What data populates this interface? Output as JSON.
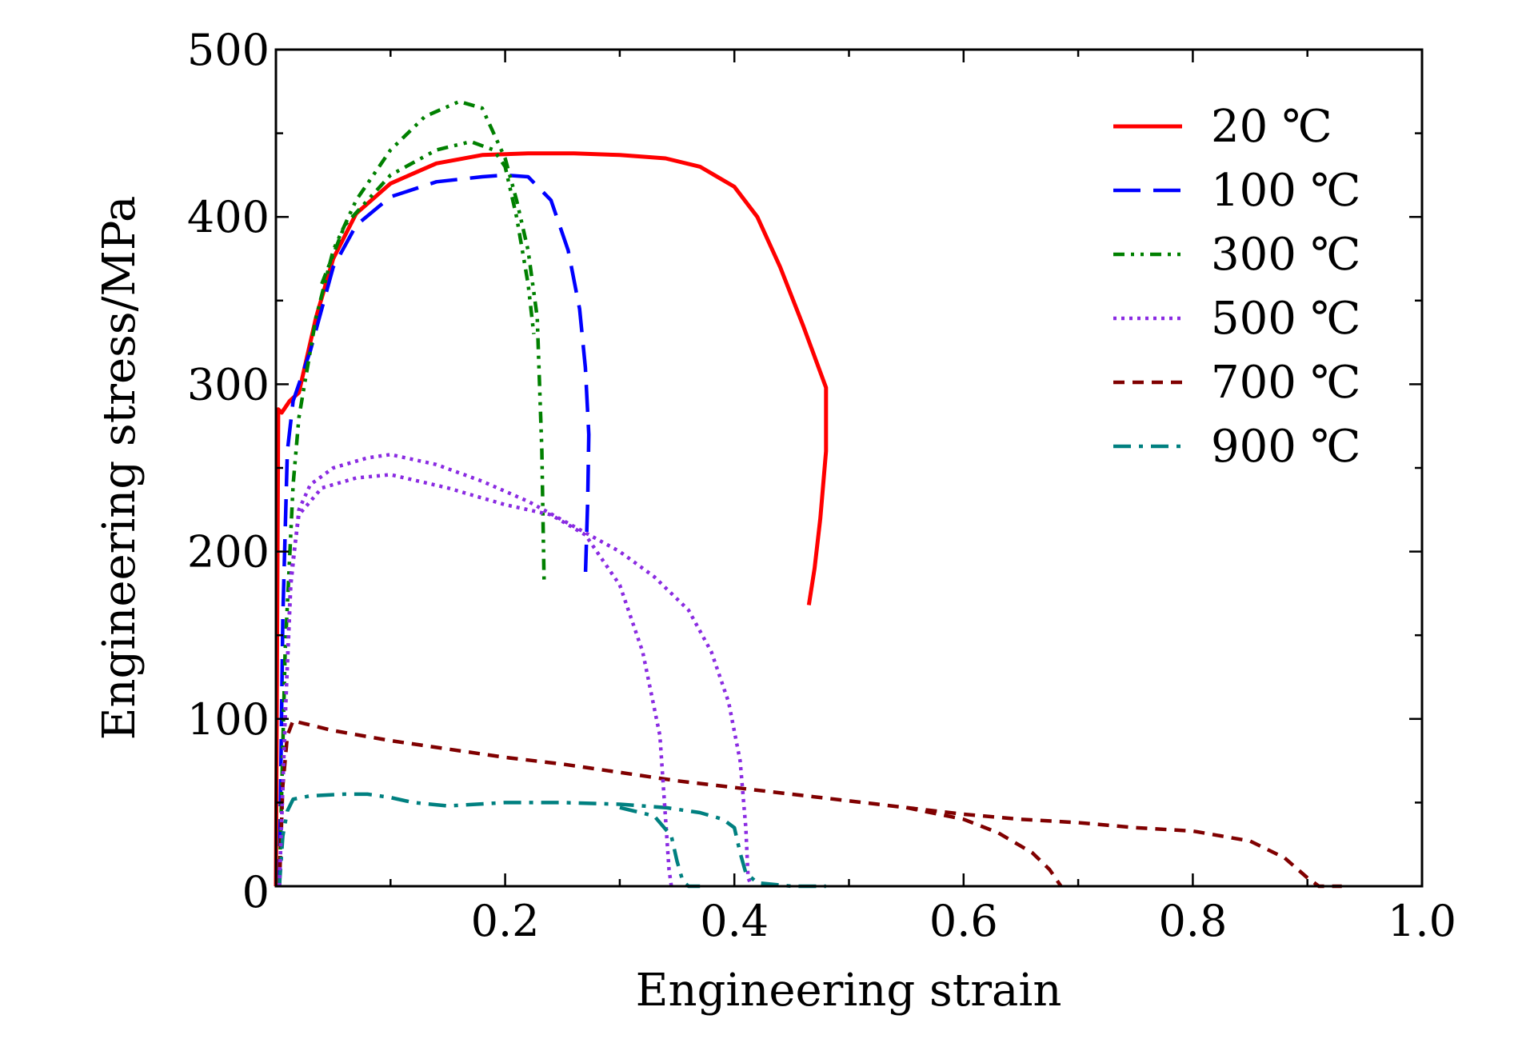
{
  "chart_data": {
    "type": "line",
    "title": "",
    "xlabel": "Engineering strain",
    "ylabel": "Engineering stress/MPa",
    "xlim": [
      0,
      1.0
    ],
    "ylim": [
      0,
      500
    ],
    "xticks": [
      0.2,
      0.4,
      0.6,
      0.8,
      1.0
    ],
    "xtick_labels": [
      "0.2",
      "0.4",
      "0.6",
      "0.8",
      "1.0"
    ],
    "yticks": [
      0,
      100,
      200,
      300,
      400,
      500
    ],
    "ytick_labels": [
      "0",
      "100",
      "200",
      "300",
      "400",
      "500"
    ],
    "grid": false,
    "legend_position": "top-right",
    "series": [
      {
        "name": "20 ℃",
        "color": "#ff0000",
        "dash": "solid",
        "points": [
          [
            0.0,
            0
          ],
          [
            0.002,
            285
          ],
          [
            0.005,
            283
          ],
          [
            0.012,
            290
          ],
          [
            0.02,
            295
          ],
          [
            0.035,
            340
          ],
          [
            0.05,
            375
          ],
          [
            0.07,
            402
          ],
          [
            0.1,
            420
          ],
          [
            0.14,
            432
          ],
          [
            0.18,
            437
          ],
          [
            0.22,
            438
          ],
          [
            0.26,
            438
          ],
          [
            0.3,
            437
          ],
          [
            0.34,
            435
          ],
          [
            0.37,
            430
          ],
          [
            0.4,
            418
          ],
          [
            0.42,
            400
          ],
          [
            0.44,
            370
          ],
          [
            0.46,
            335
          ],
          [
            0.48,
            298
          ],
          [
            0.48,
            260
          ],
          [
            0.475,
            220
          ],
          [
            0.47,
            190
          ],
          [
            0.465,
            168
          ]
        ]
      },
      {
        "name": "100 ℃",
        "color": "#0000ff",
        "dash": "long-dash",
        "points": [
          [
            0.003,
            0
          ],
          [
            0.006,
            160
          ],
          [
            0.01,
            260
          ],
          [
            0.015,
            290
          ],
          [
            0.02,
            300
          ],
          [
            0.03,
            320
          ],
          [
            0.05,
            370
          ],
          [
            0.07,
            395
          ],
          [
            0.1,
            412
          ],
          [
            0.14,
            421
          ],
          [
            0.18,
            424
          ],
          [
            0.2,
            425
          ],
          [
            0.22,
            424
          ],
          [
            0.24,
            410
          ],
          [
            0.255,
            380
          ],
          [
            0.265,
            345
          ],
          [
            0.27,
            310
          ],
          [
            0.273,
            270
          ],
          [
            0.272,
            230
          ],
          [
            0.27,
            185
          ]
        ]
      },
      {
        "name": "300 ℃",
        "color": "#008000",
        "dash": "dash-dot-dot",
        "points": [
          [
            0.003,
            0
          ],
          [
            0.008,
            140
          ],
          [
            0.015,
            240
          ],
          [
            0.02,
            280
          ],
          [
            0.025,
            300
          ],
          [
            0.035,
            340
          ],
          [
            0.05,
            380
          ],
          [
            0.07,
            410
          ],
          [
            0.1,
            440
          ],
          [
            0.13,
            460
          ],
          [
            0.16,
            469
          ],
          [
            0.18,
            465
          ],
          [
            0.2,
            435
          ],
          [
            0.21,
            410
          ],
          [
            0.22,
            380
          ],
          [
            0.228,
            340
          ],
          [
            0.23,
            300
          ],
          [
            0.232,
            260
          ],
          [
            0.233,
            220
          ],
          [
            0.234,
            182
          ]
        ]
      },
      {
        "name": "500 ℃",
        "color": "#8a2be2",
        "dash": "dotted",
        "points": [
          [
            0.003,
            0
          ],
          [
            0.008,
            100
          ],
          [
            0.013,
            180
          ],
          [
            0.02,
            225
          ],
          [
            0.03,
            240
          ],
          [
            0.05,
            250
          ],
          [
            0.08,
            256
          ],
          [
            0.1,
            258
          ],
          [
            0.14,
            252
          ],
          [
            0.18,
            242
          ],
          [
            0.22,
            230
          ],
          [
            0.26,
            215
          ],
          [
            0.3,
            200
          ],
          [
            0.33,
            185
          ],
          [
            0.36,
            165
          ],
          [
            0.38,
            140
          ],
          [
            0.395,
            110
          ],
          [
            0.405,
            75
          ],
          [
            0.41,
            35
          ],
          [
            0.412,
            5
          ],
          [
            0.415,
            0
          ]
        ]
      },
      {
        "name": "700 ℃",
        "color": "#800000",
        "dash": "dashed",
        "points": [
          [
            0.003,
            0
          ],
          [
            0.006,
            60
          ],
          [
            0.01,
            90
          ],
          [
            0.015,
            99
          ],
          [
            0.02,
            98
          ],
          [
            0.05,
            93
          ],
          [
            0.1,
            87
          ],
          [
            0.15,
            82
          ],
          [
            0.2,
            77
          ],
          [
            0.25,
            73
          ],
          [
            0.3,
            68
          ],
          [
            0.35,
            63
          ],
          [
            0.4,
            59
          ],
          [
            0.45,
            55
          ],
          [
            0.5,
            51
          ],
          [
            0.55,
            47
          ],
          [
            0.6,
            43
          ],
          [
            0.65,
            40
          ],
          [
            0.7,
            38
          ],
          [
            0.75,
            35
          ],
          [
            0.8,
            33
          ],
          [
            0.85,
            27
          ],
          [
            0.88,
            17
          ],
          [
            0.9,
            5
          ],
          [
            0.91,
            0
          ],
          [
            0.93,
            0
          ]
        ]
      },
      {
        "name": "900 ℃",
        "color": "#008080",
        "dash": "dash-dot",
        "points": [
          [
            0.003,
            0
          ],
          [
            0.006,
            30
          ],
          [
            0.01,
            45
          ],
          [
            0.015,
            52
          ],
          [
            0.03,
            54
          ],
          [
            0.06,
            55
          ],
          [
            0.08,
            55
          ],
          [
            0.1,
            53
          ],
          [
            0.12,
            50
          ],
          [
            0.15,
            48
          ],
          [
            0.2,
            50
          ],
          [
            0.25,
            50
          ],
          [
            0.3,
            49
          ],
          [
            0.34,
            47
          ],
          [
            0.37,
            44
          ],
          [
            0.39,
            40
          ],
          [
            0.4,
            35
          ],
          [
            0.405,
            20
          ],
          [
            0.41,
            8
          ],
          [
            0.42,
            2
          ],
          [
            0.45,
            0
          ],
          [
            0.48,
            0
          ]
        ]
      },
      {
        "name": "",
        "color": "#8a2be2",
        "dash": "dotted",
        "points": [
          [
            0.003,
            0
          ],
          [
            0.008,
            100
          ],
          [
            0.013,
            185
          ],
          [
            0.02,
            222
          ],
          [
            0.04,
            238
          ],
          [
            0.07,
            244
          ],
          [
            0.1,
            246
          ],
          [
            0.15,
            238
          ],
          [
            0.2,
            228
          ],
          [
            0.24,
            222
          ],
          [
            0.27,
            210
          ],
          [
            0.3,
            180
          ],
          [
            0.32,
            140
          ],
          [
            0.335,
            90
          ],
          [
            0.34,
            40
          ],
          [
            0.343,
            10
          ],
          [
            0.345,
            0
          ]
        ]
      },
      {
        "name": "",
        "color": "#800000",
        "dash": "dashed",
        "points": [
          [
            0.55,
            47
          ],
          [
            0.6,
            40
          ],
          [
            0.63,
            32
          ],
          [
            0.66,
            20
          ],
          [
            0.675,
            10
          ],
          [
            0.685,
            0
          ]
        ]
      },
      {
        "name": "",
        "color": "#008080",
        "dash": "dash-dot",
        "points": [
          [
            0.3,
            47
          ],
          [
            0.33,
            42
          ],
          [
            0.345,
            30
          ],
          [
            0.35,
            15
          ],
          [
            0.355,
            3
          ],
          [
            0.36,
            0
          ],
          [
            0.37,
            0
          ]
        ]
      },
      {
        "name": "",
        "color": "#008000",
        "dash": "dash-dot-dot",
        "points": [
          [
            0.04,
            360
          ],
          [
            0.06,
            395
          ],
          [
            0.1,
            425
          ],
          [
            0.14,
            440
          ],
          [
            0.17,
            445
          ],
          [
            0.19,
            440
          ],
          [
            0.2,
            430
          ],
          [
            0.21,
            400
          ],
          [
            0.22,
            360
          ],
          [
            0.225,
            330
          ]
        ]
      }
    ]
  }
}
